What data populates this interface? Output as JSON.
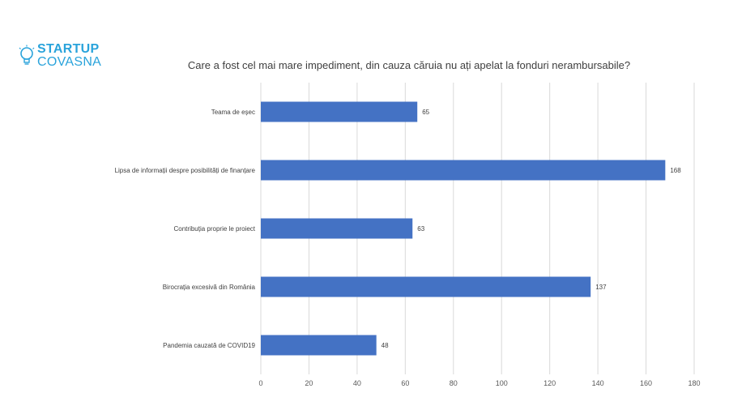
{
  "logo": {
    "line1": "STARTUP",
    "line2": "COVASNA"
  },
  "chart_data": {
    "type": "bar",
    "orientation": "horizontal",
    "title": "Care a fost cel mai mare impediment, din cauza căruia nu ați apelat la fonduri nerambursabile?",
    "categories": [
      "Teama de eșec",
      "Lipsa de informații despre posibilități de finanțare",
      "Contribuția proprie le proiect",
      "Birocrația excesivă din România",
      "Pandemia cauzată de COVID19"
    ],
    "values": [
      65,
      168,
      63,
      137,
      48
    ],
    "xlim": [
      0,
      180
    ],
    "xticks": [
      0,
      20,
      40,
      60,
      80,
      100,
      120,
      140,
      160,
      180
    ],
    "grid": true,
    "data_labels": true,
    "bar_color": "#4472c4",
    "xlabel": "",
    "ylabel": ""
  }
}
